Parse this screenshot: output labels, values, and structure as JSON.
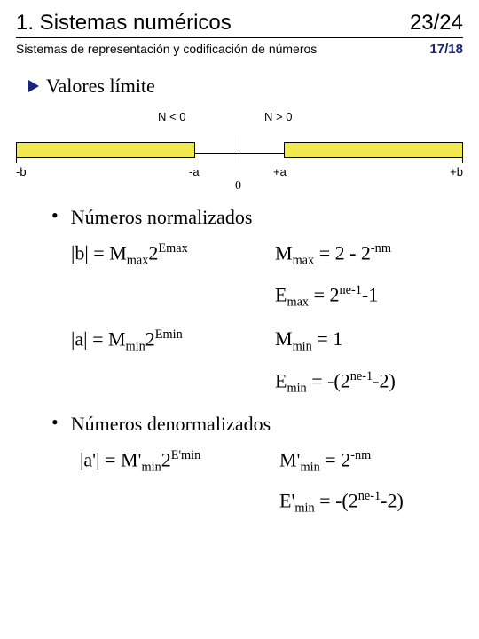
{
  "header": {
    "chapter": "1. Sistemas numéricos",
    "page": "23/24"
  },
  "subheader": {
    "title": "Sistemas de representación y codificación de números",
    "page": "17/18"
  },
  "section_title": "Valores límite",
  "diagram": {
    "n_lt": "N < 0",
    "n_gt": "N > 0",
    "minus_b": "-b",
    "minus_a": "-a",
    "zero": "0",
    "plus_a": "+a",
    "plus_b": "+b",
    "bar_color": "#f2e84f",
    "bar_border": "#000000",
    "axis": {
      "ticks": [
        0,
        200,
        250,
        300,
        500
      ],
      "left_bar": [
        0,
        200
      ],
      "right_bar": [
        300,
        500
      ],
      "center_tick": 250
    }
  },
  "items": [
    {
      "title": "Números normalizados",
      "formulas": [
        {
          "lhs_html": "|b| = M<sub>max</sub>2<sup>Emax</sup>",
          "rhs_html": "M<sub>max</sub> = 2 - 2<sup>-nm</sup><br><span style='display:inline-block;margin-top:16px'>E<sub>max</sub> = 2<sup>ne-1</sup>-1</span>"
        },
        {
          "lhs_html": "|a| = M<sub>min</sub>2<sup>Emin</sup>",
          "rhs_html": "M<sub>min</sub> = 1<br><span style='display:inline-block;margin-top:16px'>E<sub>min</sub> = -(2<sup>ne-1</sup>-2)</span>"
        }
      ]
    },
    {
      "title": "Números denormalizados",
      "formulas": [
        {
          "lhs_html": "|a'| = M'<sub>min</sub>2<sup>E'min</sup>",
          "rhs_html": "M'<sub>min</sub> = 2<sup>-nm</sup><br><span style='display:inline-block;margin-top:16px'>E'<sub>min</sub> = -(2<sup>ne-1</sup>-2)</span>"
        }
      ]
    }
  ]
}
